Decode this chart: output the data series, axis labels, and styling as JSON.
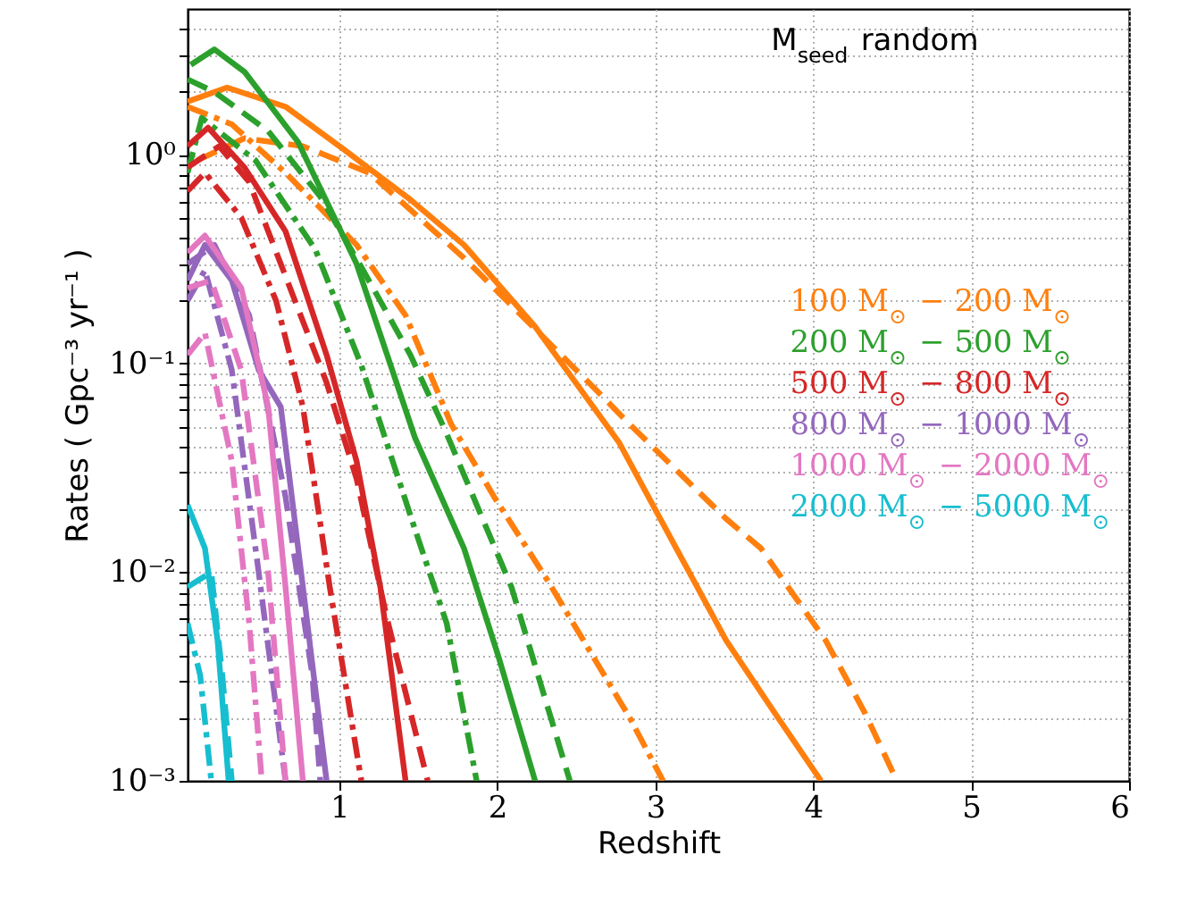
{
  "chart_data": {
    "type": "line",
    "xlabel": "Redshift",
    "ylabel": "Rates ( Gpc⁻³ yr⁻¹ )",
    "annotations": [
      "M$_{seed}$ random"
    ],
    "log": "y",
    "grid": true,
    "legend": "right",
    "xlim": [
      0.04,
      6
    ],
    "xticks": [
      1,
      2,
      3,
      4,
      5,
      6
    ],
    "ylim": [
      0.001,
      5
    ],
    "yticks": [
      {
        "value": 0.001,
        "label": "10⁻³"
      },
      {
        "value": 0.002,
        "label": null
      },
      {
        "value": 0.003,
        "label": null
      },
      {
        "value": 0.004,
        "label": null
      },
      {
        "value": 0.005,
        "label": null
      },
      {
        "value": 0.006,
        "label": null
      },
      {
        "value": 0.007,
        "label": null
      },
      {
        "value": 0.008,
        "label": null
      },
      {
        "value": 0.009,
        "label": null
      },
      {
        "value": 0.01,
        "label": "10⁻²"
      },
      {
        "value": 0.02,
        "label": null
      },
      {
        "value": 0.03,
        "label": null
      },
      {
        "value": 0.04,
        "label": null
      },
      {
        "value": 0.05,
        "label": null
      },
      {
        "value": 0.06,
        "label": null
      },
      {
        "value": 0.07,
        "label": null
      },
      {
        "value": 0.08,
        "label": null
      },
      {
        "value": 0.09,
        "label": null
      },
      {
        "value": 0.1,
        "label": "10⁻¹"
      },
      {
        "value": 0.2,
        "label": null
      },
      {
        "value": 0.3,
        "label": null
      },
      {
        "value": 0.4,
        "label": null
      },
      {
        "value": 0.5,
        "label": null
      },
      {
        "value": 0.6,
        "label": null
      },
      {
        "value": 0.7,
        "label": null
      },
      {
        "value": 0.8,
        "label": null
      },
      {
        "value": 0.9,
        "label": null
      },
      {
        "value": 1,
        "label": "10⁰"
      },
      {
        "value": 2,
        "label": null
      },
      {
        "value": 3,
        "label": null
      },
      {
        "value": 4,
        "label": null
      }
    ],
    "series": [
      {
        "name": "100 M$_{⊙}$ − 200 M$_{⊙}$",
        "color": "#ff7f0e",
        "line_style": "solid",
        "x": [
          0.04,
          0.29,
          0.66,
          1.03,
          1.45,
          1.79,
          2.24,
          2.77,
          3.45,
          3.76,
          4.05
        ],
        "values": [
          1.8,
          2.1,
          1.7,
          1.06,
          0.61,
          0.37,
          0.15,
          0.042,
          0.0047,
          0.0021,
          0.001
        ]
      },
      {
        "color": "#ff7f0e",
        "line_style": "dashed",
        "x": [
          0.1,
          0.4,
          0.77,
          1.19,
          1.79,
          2.58,
          2.84,
          3.45,
          3.67,
          4.08,
          4.33,
          4.53
        ],
        "values": [
          0.94,
          1.2,
          1.1,
          0.82,
          0.32,
          0.081,
          0.051,
          0.018,
          0.013,
          0.0047,
          0.0021,
          0.001
        ]
      },
      {
        "color": "#ff7f0e",
        "line_style": "dashdot",
        "x": [
          0.04,
          0.32,
          0.66,
          1.11,
          1.42,
          1.71,
          1.98,
          2.32,
          2.84,
          3.05
        ],
        "values": [
          1.7,
          1.4,
          0.82,
          0.37,
          0.17,
          0.051,
          0.023,
          0.0091,
          0.002,
          0.001
        ]
      },
      {
        "name": "200 M$_{⊙}$ − 500 M$_{⊙}$",
        "color": "#2ca02c",
        "line_style": "solid",
        "x": [
          0.06,
          0.21,
          0.4,
          0.74,
          1.11,
          1.48,
          1.79,
          2.01,
          2.24
        ],
        "values": [
          2.7,
          3.2,
          2.5,
          1.15,
          0.3,
          0.044,
          0.013,
          0.0039,
          0.001
        ]
      },
      {
        "color": "#2ca02c",
        "line_style": "dashed",
        "x": [
          0.04,
          0.21,
          0.55,
          0.88,
          1.14,
          1.45,
          1.67,
          2.09,
          2.46
        ],
        "values": [
          2.3,
          2.0,
          1.3,
          0.63,
          0.29,
          0.11,
          0.048,
          0.0085,
          0.001
        ]
      },
      {
        "color": "#2ca02c",
        "line_style": "dashdot",
        "x": [
          0.04,
          0.13,
          0.47,
          0.85,
          1.14,
          1.48,
          1.68,
          1.87
        ],
        "values": [
          0.82,
          1.5,
          0.94,
          0.35,
          0.098,
          0.016,
          0.0057,
          0.001
        ]
      },
      {
        "name": "500 M$_{⊙}$ − 800 M$_{⊙}$",
        "color": "#d62728",
        "line_style": "solid",
        "x": [
          0.04,
          0.17,
          0.4,
          0.66,
          0.92,
          1.11,
          1.26,
          1.42
        ],
        "values": [
          1.1,
          1.35,
          0.87,
          0.43,
          0.11,
          0.034,
          0.0085,
          0.001
        ]
      },
      {
        "color": "#d62728",
        "line_style": "dashed",
        "x": [
          0.04,
          0.24,
          0.43,
          0.63,
          0.92,
          1.11,
          1.3,
          1.56
        ],
        "values": [
          0.87,
          1.1,
          0.74,
          0.3,
          0.081,
          0.028,
          0.0061,
          0.001
        ]
      },
      {
        "color": "#d62728",
        "line_style": "dashdot",
        "x": [
          0.04,
          0.15,
          0.38,
          0.6,
          0.77,
          0.94,
          1.14
        ],
        "values": [
          0.67,
          0.82,
          0.5,
          0.2,
          0.062,
          0.0085,
          0.001
        ]
      },
      {
        "name": "800 M$_{⊙}$ − 1000 M$_{⊙}$",
        "color": "#9467bd",
        "line_style": "solid",
        "x": [
          0.04,
          0.15,
          0.32,
          0.49,
          0.63,
          0.77,
          0.92
        ],
        "values": [
          0.25,
          0.37,
          0.25,
          0.093,
          0.062,
          0.0085,
          0.001
        ]
      },
      {
        "color": "#9467bd",
        "line_style": "dashed",
        "x": [
          0.04,
          0.21,
          0.43,
          0.66,
          0.83,
          0.88
        ],
        "values": [
          0.3,
          0.37,
          0.17,
          0.023,
          0.0032,
          0.001
        ]
      },
      {
        "color": "#9467bd",
        "line_style": "dashdot",
        "x": [
          0.04,
          0.15,
          0.32,
          0.49,
          0.66
        ],
        "values": [
          0.2,
          0.28,
          0.093,
          0.01,
          0.001
        ]
      },
      {
        "name": "1000 M$_{⊙}$ − 2000 M$_{⊙}$",
        "color": "#e377c2",
        "line_style": "solid",
        "x": [
          0.04,
          0.15,
          0.38,
          0.55,
          0.66,
          0.77
        ],
        "values": [
          0.34,
          0.41,
          0.23,
          0.062,
          0.0085,
          0.001
        ]
      },
      {
        "color": "#e377c2",
        "line_style": "dashed",
        "x": [
          0.04,
          0.19,
          0.38,
          0.55,
          0.66
        ],
        "values": [
          0.23,
          0.25,
          0.093,
          0.01,
          0.001
        ]
      },
      {
        "color": "#e377c2",
        "line_style": "dashdot",
        "x": [
          0.04,
          0.15,
          0.32,
          0.43,
          0.51
        ],
        "values": [
          0.11,
          0.14,
          0.034,
          0.0057,
          0.001
        ]
      },
      {
        "name": "2000 M$_{⊙}$ − 5000 M$_{⊙}$",
        "color": "#17becf",
        "line_style": "solid",
        "x": [
          0.04,
          0.15,
          0.23,
          0.3
        ],
        "values": [
          0.021,
          0.013,
          0.0047,
          0.001
        ]
      },
      {
        "color": "#17becf",
        "line_style": "dashed",
        "x": [
          0.04,
          0.19,
          0.26,
          0.32
        ],
        "values": [
          0.0085,
          0.01,
          0.0032,
          0.001
        ]
      },
      {
        "color": "#17becf",
        "line_style": "dashdot",
        "x": [
          0.04,
          0.12,
          0.19
        ],
        "values": [
          0.0057,
          0.0032,
          0.001
        ]
      }
    ]
  }
}
